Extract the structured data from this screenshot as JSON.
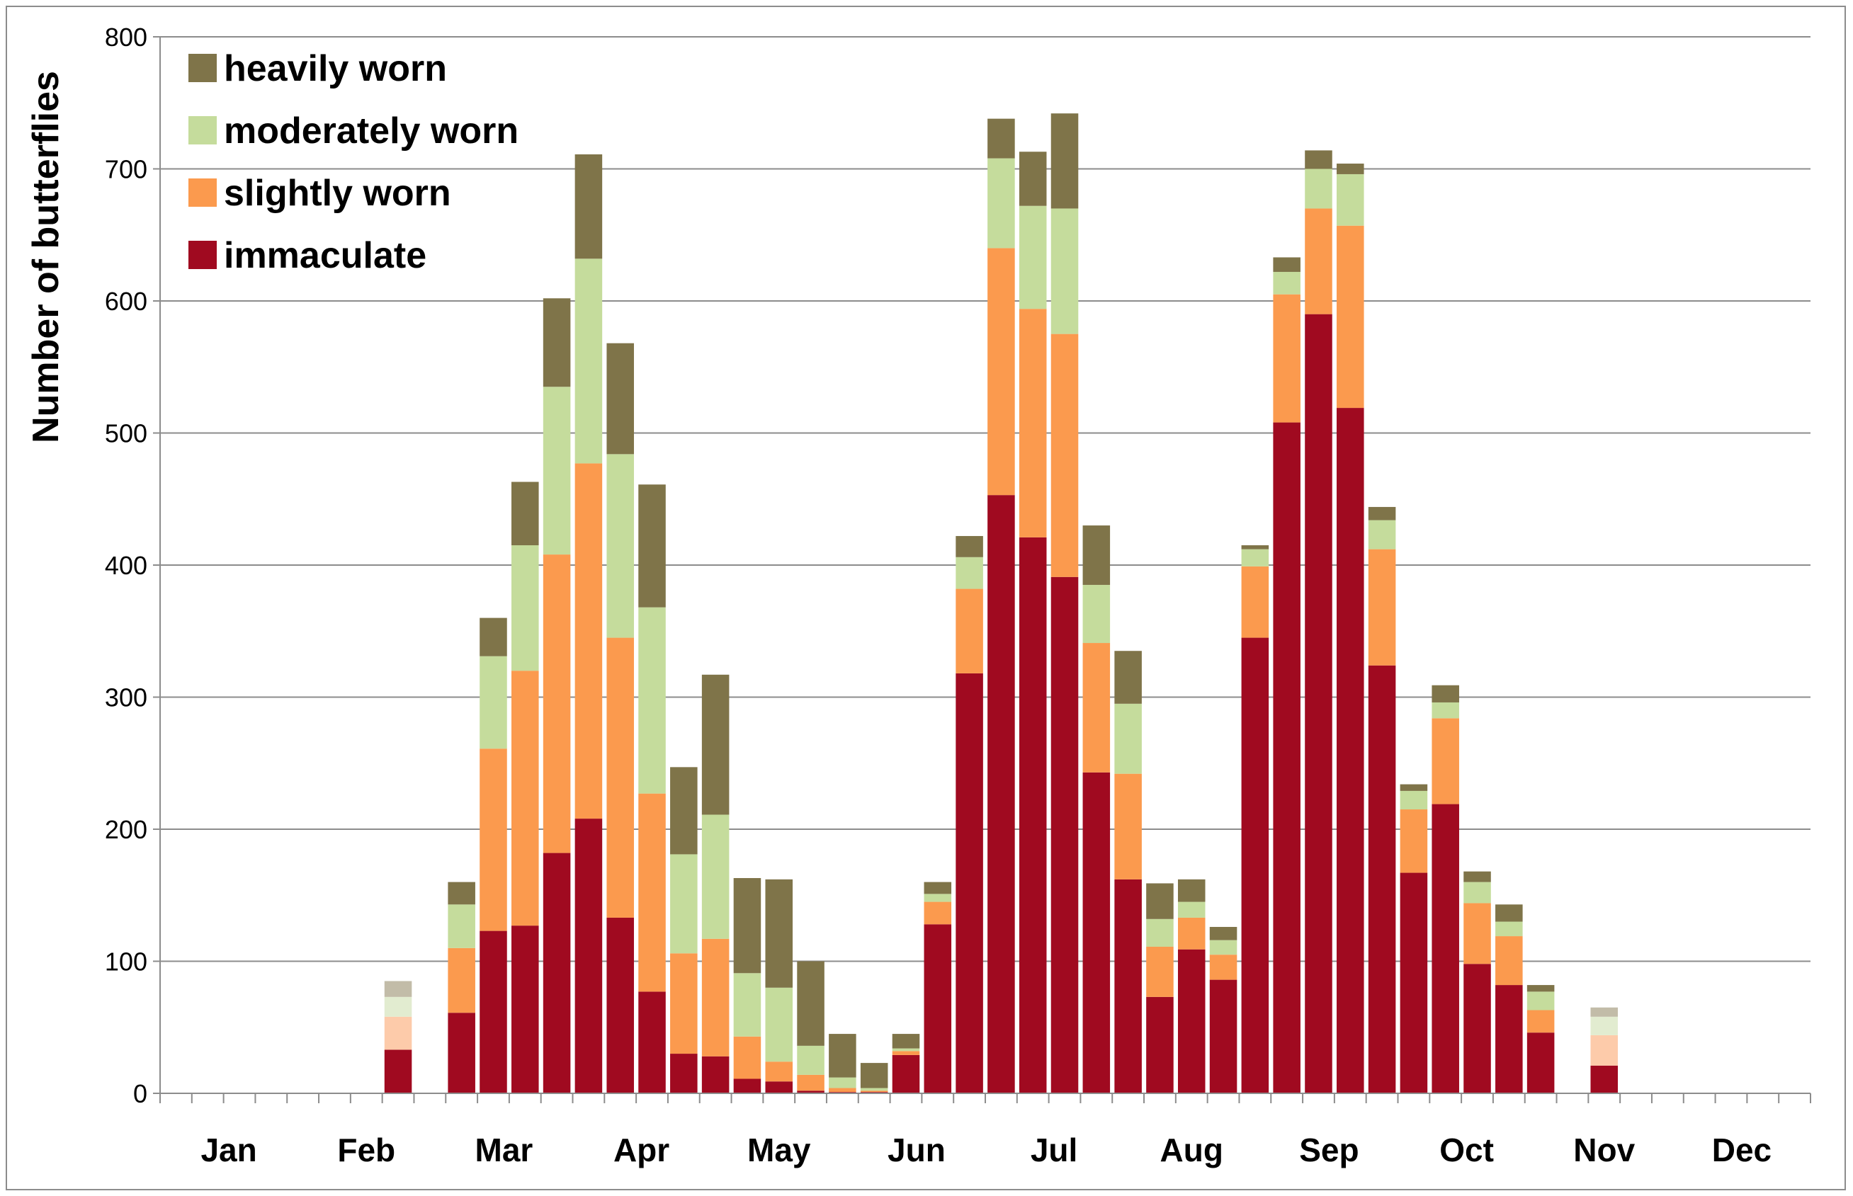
{
  "chart_data": {
    "type": "bar",
    "stacked": true,
    "title": "",
    "xlabel": "",
    "ylabel": "Number of butterflies",
    "ylim": [
      0,
      800
    ],
    "yticks": [
      0,
      100,
      200,
      300,
      400,
      500,
      600,
      700,
      800
    ],
    "grid": true,
    "legend_position": "top-left",
    "num_slots": 52,
    "months": [
      "Jan",
      "Feb",
      "Mar",
      "Apr",
      "May",
      "Jun",
      "Jul",
      "Aug",
      "Sep",
      "Oct",
      "Nov",
      "Dec"
    ],
    "legend": [
      {
        "key": "heavily",
        "label": "heavily worn",
        "color": "#7f7449"
      },
      {
        "key": "moderately",
        "label": "moderately worn",
        "color": "#c5dc9c"
      },
      {
        "key": "slightly",
        "label": "slightly worn",
        "color": "#fb9a4e"
      },
      {
        "key": "immaculate",
        "label": "immaculate",
        "color": "#a00a20"
      }
    ],
    "series_colors": {
      "immaculate": "#a00a20",
      "slightly": "#fb9a4e",
      "moderately": "#c5dc9c",
      "heavily": "#7f7449"
    },
    "faded_colors": {
      "immaculate": "#a00a20",
      "slightly": "#fdcbaa",
      "moderately": "#e2ecd0",
      "heavily": "#c2bca8"
    },
    "bars": [
      {
        "slot": 7,
        "immaculate": 33,
        "slightly": 25,
        "moderately": 15,
        "heavily": 12,
        "faded": true
      },
      {
        "slot": 9,
        "immaculate": 61,
        "slightly": 49,
        "moderately": 33,
        "heavily": 17
      },
      {
        "slot": 10,
        "immaculate": 123,
        "slightly": 138,
        "moderately": 70,
        "heavily": 29
      },
      {
        "slot": 11,
        "immaculate": 127,
        "slightly": 193,
        "moderately": 95,
        "heavily": 48
      },
      {
        "slot": 12,
        "immaculate": 182,
        "slightly": 226,
        "moderately": 127,
        "heavily": 67
      },
      {
        "slot": 13,
        "immaculate": 208,
        "slightly": 269,
        "moderately": 155,
        "heavily": 79
      },
      {
        "slot": 14,
        "immaculate": 133,
        "slightly": 212,
        "moderately": 139,
        "heavily": 84
      },
      {
        "slot": 15,
        "immaculate": 77,
        "slightly": 150,
        "moderately": 141,
        "heavily": 93
      },
      {
        "slot": 16,
        "immaculate": 30,
        "slightly": 76,
        "moderately": 75,
        "heavily": 66
      },
      {
        "slot": 17,
        "immaculate": 28,
        "slightly": 89,
        "moderately": 94,
        "heavily": 106
      },
      {
        "slot": 18,
        "immaculate": 11,
        "slightly": 32,
        "moderately": 48,
        "heavily": 72
      },
      {
        "slot": 19,
        "immaculate": 9,
        "slightly": 15,
        "moderately": 56,
        "heavily": 82
      },
      {
        "slot": 20,
        "immaculate": 2,
        "slightly": 12,
        "moderately": 22,
        "heavily": 64
      },
      {
        "slot": 21,
        "immaculate": 1,
        "slightly": 3,
        "moderately": 8,
        "heavily": 33
      },
      {
        "slot": 22,
        "immaculate": 1,
        "slightly": 1,
        "moderately": 2,
        "heavily": 19
      },
      {
        "slot": 23,
        "immaculate": 29,
        "slightly": 3,
        "moderately": 2,
        "heavily": 11
      },
      {
        "slot": 24,
        "immaculate": 128,
        "slightly": 17,
        "moderately": 6,
        "heavily": 9
      },
      {
        "slot": 25,
        "immaculate": 318,
        "slightly": 64,
        "moderately": 24,
        "heavily": 16
      },
      {
        "slot": 26,
        "immaculate": 453,
        "slightly": 187,
        "moderately": 68,
        "heavily": 30
      },
      {
        "slot": 27,
        "immaculate": 421,
        "slightly": 173,
        "moderately": 78,
        "heavily": 41
      },
      {
        "slot": 28,
        "immaculate": 391,
        "slightly": 184,
        "moderately": 95,
        "heavily": 72
      },
      {
        "slot": 29,
        "immaculate": 243,
        "slightly": 98,
        "moderately": 44,
        "heavily": 45
      },
      {
        "slot": 30,
        "immaculate": 162,
        "slightly": 80,
        "moderately": 53,
        "heavily": 40
      },
      {
        "slot": 31,
        "immaculate": 73,
        "slightly": 38,
        "moderately": 21,
        "heavily": 27
      },
      {
        "slot": 32,
        "immaculate": 109,
        "slightly": 24,
        "moderately": 12,
        "heavily": 17
      },
      {
        "slot": 33,
        "immaculate": 86,
        "slightly": 19,
        "moderately": 11,
        "heavily": 10
      },
      {
        "slot": 34,
        "immaculate": 345,
        "slightly": 54,
        "moderately": 13,
        "heavily": 3
      },
      {
        "slot": 35,
        "immaculate": 508,
        "slightly": 97,
        "moderately": 17,
        "heavily": 11
      },
      {
        "slot": 36,
        "immaculate": 590,
        "slightly": 80,
        "moderately": 30,
        "heavily": 14
      },
      {
        "slot": 37,
        "immaculate": 519,
        "slightly": 138,
        "moderately": 39,
        "heavily": 8
      },
      {
        "slot": 38,
        "immaculate": 324,
        "slightly": 88,
        "moderately": 22,
        "heavily": 10
      },
      {
        "slot": 39,
        "immaculate": 167,
        "slightly": 48,
        "moderately": 14,
        "heavily": 5
      },
      {
        "slot": 40,
        "immaculate": 219,
        "slightly": 65,
        "moderately": 12,
        "heavily": 13
      },
      {
        "slot": 41,
        "immaculate": 98,
        "slightly": 46,
        "moderately": 16,
        "heavily": 8
      },
      {
        "slot": 42,
        "immaculate": 82,
        "slightly": 37,
        "moderately": 11,
        "heavily": 13
      },
      {
        "slot": 43,
        "immaculate": 46,
        "slightly": 17,
        "moderately": 14,
        "heavily": 5
      },
      {
        "slot": 45,
        "immaculate": 21,
        "slightly": 23,
        "moderately": 14,
        "heavily": 7,
        "faded": true
      }
    ]
  }
}
